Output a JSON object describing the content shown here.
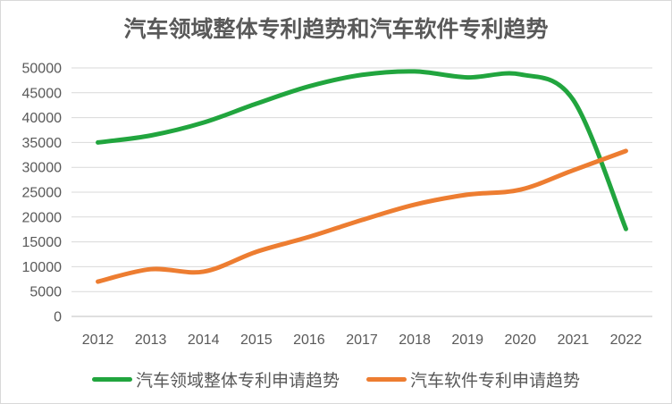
{
  "title": "汽车领域整体专利趋势和汽车软件专利趋势",
  "chart_data": {
    "type": "line",
    "categories": [
      "2012",
      "2013",
      "2014",
      "2015",
      "2016",
      "2017",
      "2018",
      "2019",
      "2020",
      "2021",
      "2022"
    ],
    "series": [
      {
        "name": "汽车领域整体专利申请趋势",
        "color": "#21a53e",
        "values": [
          35000,
          36400,
          39000,
          42800,
          46300,
          48600,
          49300,
          48100,
          48700,
          43600,
          17600
        ]
      },
      {
        "name": "汽车软件专利申请趋势",
        "color": "#ed7d31",
        "values": [
          7000,
          9500,
          9000,
          13000,
          16000,
          19400,
          22500,
          24500,
          25500,
          29400,
          33300
        ]
      }
    ],
    "ylim": [
      0,
      50000
    ],
    "ytick_step": 5000,
    "yticks": [
      "0",
      "5000",
      "10000",
      "15000",
      "20000",
      "25000",
      "30000",
      "35000",
      "40000",
      "45000",
      "50000"
    ],
    "grid": "horizontal",
    "legend_position": "bottom",
    "smooth": true,
    "line_width": 5
  },
  "colors": {
    "text": "#595959",
    "gridline": "#d9d9d9",
    "axis": "#bfbfbf",
    "background": "#ffffff",
    "border": "#d9d9d9"
  }
}
